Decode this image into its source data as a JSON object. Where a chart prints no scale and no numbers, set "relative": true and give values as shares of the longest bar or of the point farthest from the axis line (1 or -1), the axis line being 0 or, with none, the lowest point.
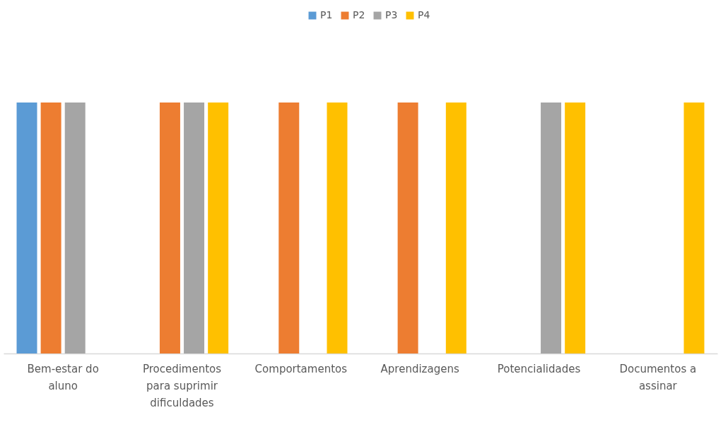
{
  "chart_data": {
    "type": "bar",
    "relative": true,
    "legend": "top",
    "categories": [
      "Bem-estar do aluno",
      "Procedimentos para suprimir dificuldades",
      "Comportamentos",
      "Aprendizagens",
      "Potencialidades",
      "Documentos a assinar"
    ],
    "series": [
      {
        "name": "P1",
        "color": "#5b9bd5",
        "values": [
          1,
          null,
          null,
          null,
          null,
          null
        ]
      },
      {
        "name": "P2",
        "color": "#ed7d31",
        "values": [
          1,
          1,
          1,
          1,
          null,
          null
        ]
      },
      {
        "name": "P3",
        "color": "#a5a5a5",
        "values": [
          1,
          1,
          null,
          null,
          1,
          null
        ]
      },
      {
        "name": "P4",
        "color": "#ffc000",
        "values": [
          null,
          1,
          1,
          1,
          1,
          1
        ]
      }
    ]
  }
}
